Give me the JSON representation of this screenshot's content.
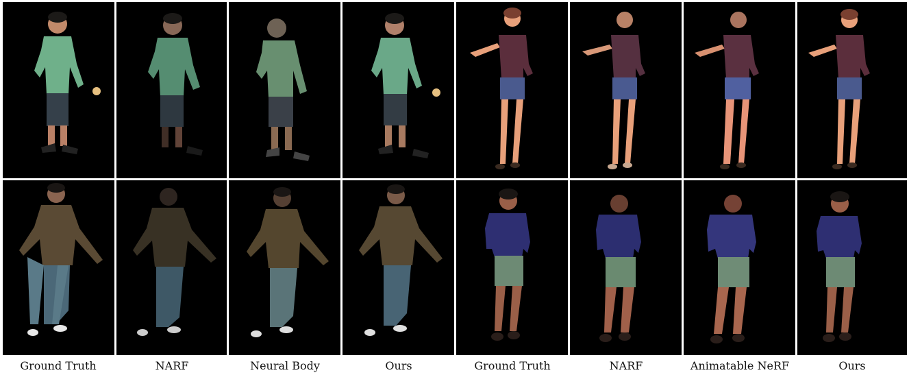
{
  "figure": {
    "columns": [
      {
        "caption": "Ground Truth",
        "subject_group": "A"
      },
      {
        "caption": "NARF",
        "subject_group": "A"
      },
      {
        "caption": "Neural Body",
        "subject_group": "A"
      },
      {
        "caption": "Ours",
        "subject_group": "A"
      },
      {
        "caption": "Ground Truth",
        "subject_group": "B"
      },
      {
        "caption": "NARF",
        "subject_group": "B"
      },
      {
        "caption": "Animatable NeRF",
        "subject_group": "B"
      },
      {
        "caption": "Ours",
        "subject_group": "B"
      }
    ],
    "rows": 2,
    "colors": {
      "background": "#000000",
      "green_shirt": "#6fb08a",
      "dark_shorts": "#35404a",
      "maroon_top": "#5b2e3c",
      "denim_shorts": "#4a5a8e",
      "olive_jacket": "#5a4a34",
      "blue_jeans": "#4b6878",
      "navy_shirt": "#2e2f72",
      "grey_shorts": "#6d8a74",
      "skin_light": "#e8a07a",
      "skin_dark": "#9a5f48"
    }
  }
}
